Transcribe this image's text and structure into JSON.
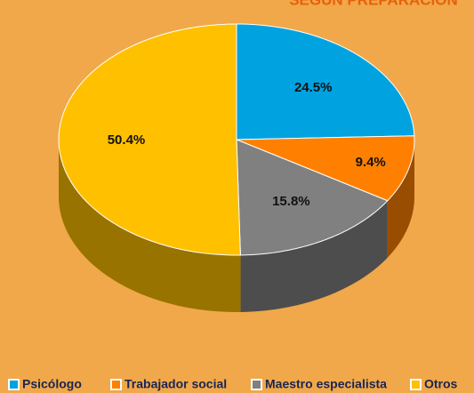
{
  "chart_data": {
    "type": "pie",
    "title": "SEGÚN PREPARACIÓN",
    "categories": [
      "Psicólogo",
      "Trabajador social",
      "Maestro especialista",
      "Otros"
    ],
    "values": [
      24.5,
      9.4,
      15.8,
      50.4
    ],
    "value_labels": [
      "24.5%",
      "9.4%",
      "15.8%",
      "50.4%"
    ],
    "colors": [
      "#00a3e0",
      "#ff8000",
      "#808080",
      "#ffc000"
    ],
    "legend": "bottom"
  }
}
